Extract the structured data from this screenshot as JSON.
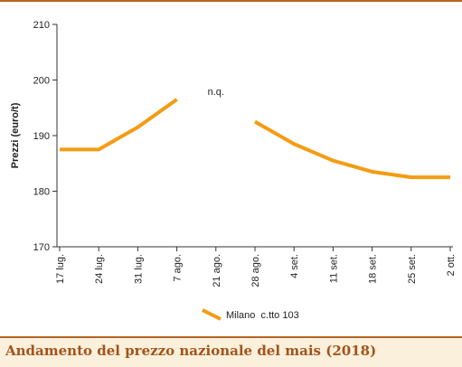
{
  "caption": "Andamento del prezzo nazionale del mais (2018)",
  "chart_data": {
    "type": "line",
    "title": "",
    "ylabel": "Prezzi (euro/t)",
    "xlabel": "",
    "ylim": [
      170,
      210
    ],
    "yticks": [
      170,
      180,
      190,
      200,
      210
    ],
    "grid": false,
    "legend_position": "bottom",
    "categories": [
      "17 lug.",
      "24 lug.",
      "31 lug.",
      "7 ago.",
      "21 ago.",
      "28 ago.",
      "4 set.",
      "11 set.",
      "18 set.",
      "25 set.",
      "2 ott."
    ],
    "series": [
      {
        "name": "Milano  c.tto 103",
        "color": "#f39c12",
        "values": [
          187.5,
          187.5,
          191.5,
          196.5,
          null,
          192.5,
          188.5,
          185.5,
          183.5,
          182.5,
          182.5
        ]
      }
    ],
    "annotations": [
      {
        "text": "n.q.",
        "x": "21 ago.",
        "y": 198
      }
    ]
  },
  "colors": {
    "accent": "#b5651d",
    "footer_bg": "#fbf0dc",
    "caption_text": "#a3531a"
  }
}
